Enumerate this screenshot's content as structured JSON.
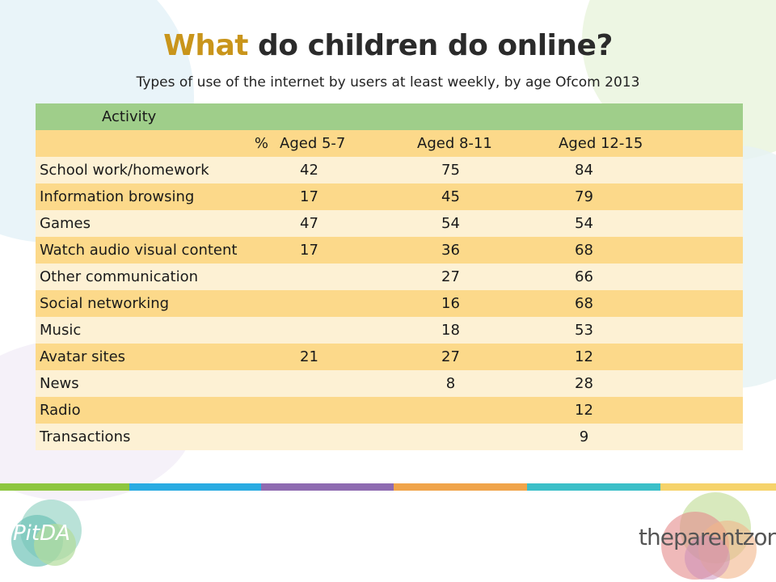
{
  "title": {
    "accent": "What",
    "rest": " do children do online?"
  },
  "subtitle": "Types of use of the internet by users at least weekly, by age Ofcom 2013",
  "table": {
    "header_activity": "Activity",
    "header_percent": "%",
    "header_cols": [
      "Aged 5-7",
      "Aged 8-11",
      "Aged 12-15"
    ],
    "rows": [
      {
        "activity": "School work/homework",
        "a": "42",
        "b": "75",
        "c": "84"
      },
      {
        "activity": "Information browsing",
        "a": "17",
        "b": "45",
        "c": "79"
      },
      {
        "activity": "Games",
        "a": "47",
        "b": "54",
        "c": "54"
      },
      {
        "activity": "Watch audio visual content",
        "a": "17",
        "b": "36",
        "c": "68"
      },
      {
        "activity": "Other communication",
        "a": "",
        "b": "27",
        "c": "66"
      },
      {
        "activity": "Social networking",
        "a": "",
        "b": "16",
        "c": "68"
      },
      {
        "activity": "Music",
        "a": "",
        "b": "18",
        "c": "53"
      },
      {
        "activity": "Avatar sites",
        "a": "21",
        "b": "27",
        "c": "12"
      },
      {
        "activity": "News",
        "a": "",
        "b": " 8",
        "c": "28"
      },
      {
        "activity": "Radio",
        "a": "",
        "b": "",
        "c": "12"
      },
      {
        "activity": "Transactions",
        "a": "",
        "b": "",
        "c": " 9"
      }
    ]
  },
  "logos": {
    "left": "PitDA",
    "right": "theparentzone"
  },
  "colors": {
    "accent": "#c9951b",
    "header_green": "#9fce8a",
    "row_dark": "#fcd98a",
    "row_light": "#fdf1d4",
    "bands": [
      "#8dc63f",
      "#29abe2",
      "#8e6bb1",
      "#f0a44a",
      "#3bbfc8",
      "#f6d36b"
    ]
  }
}
